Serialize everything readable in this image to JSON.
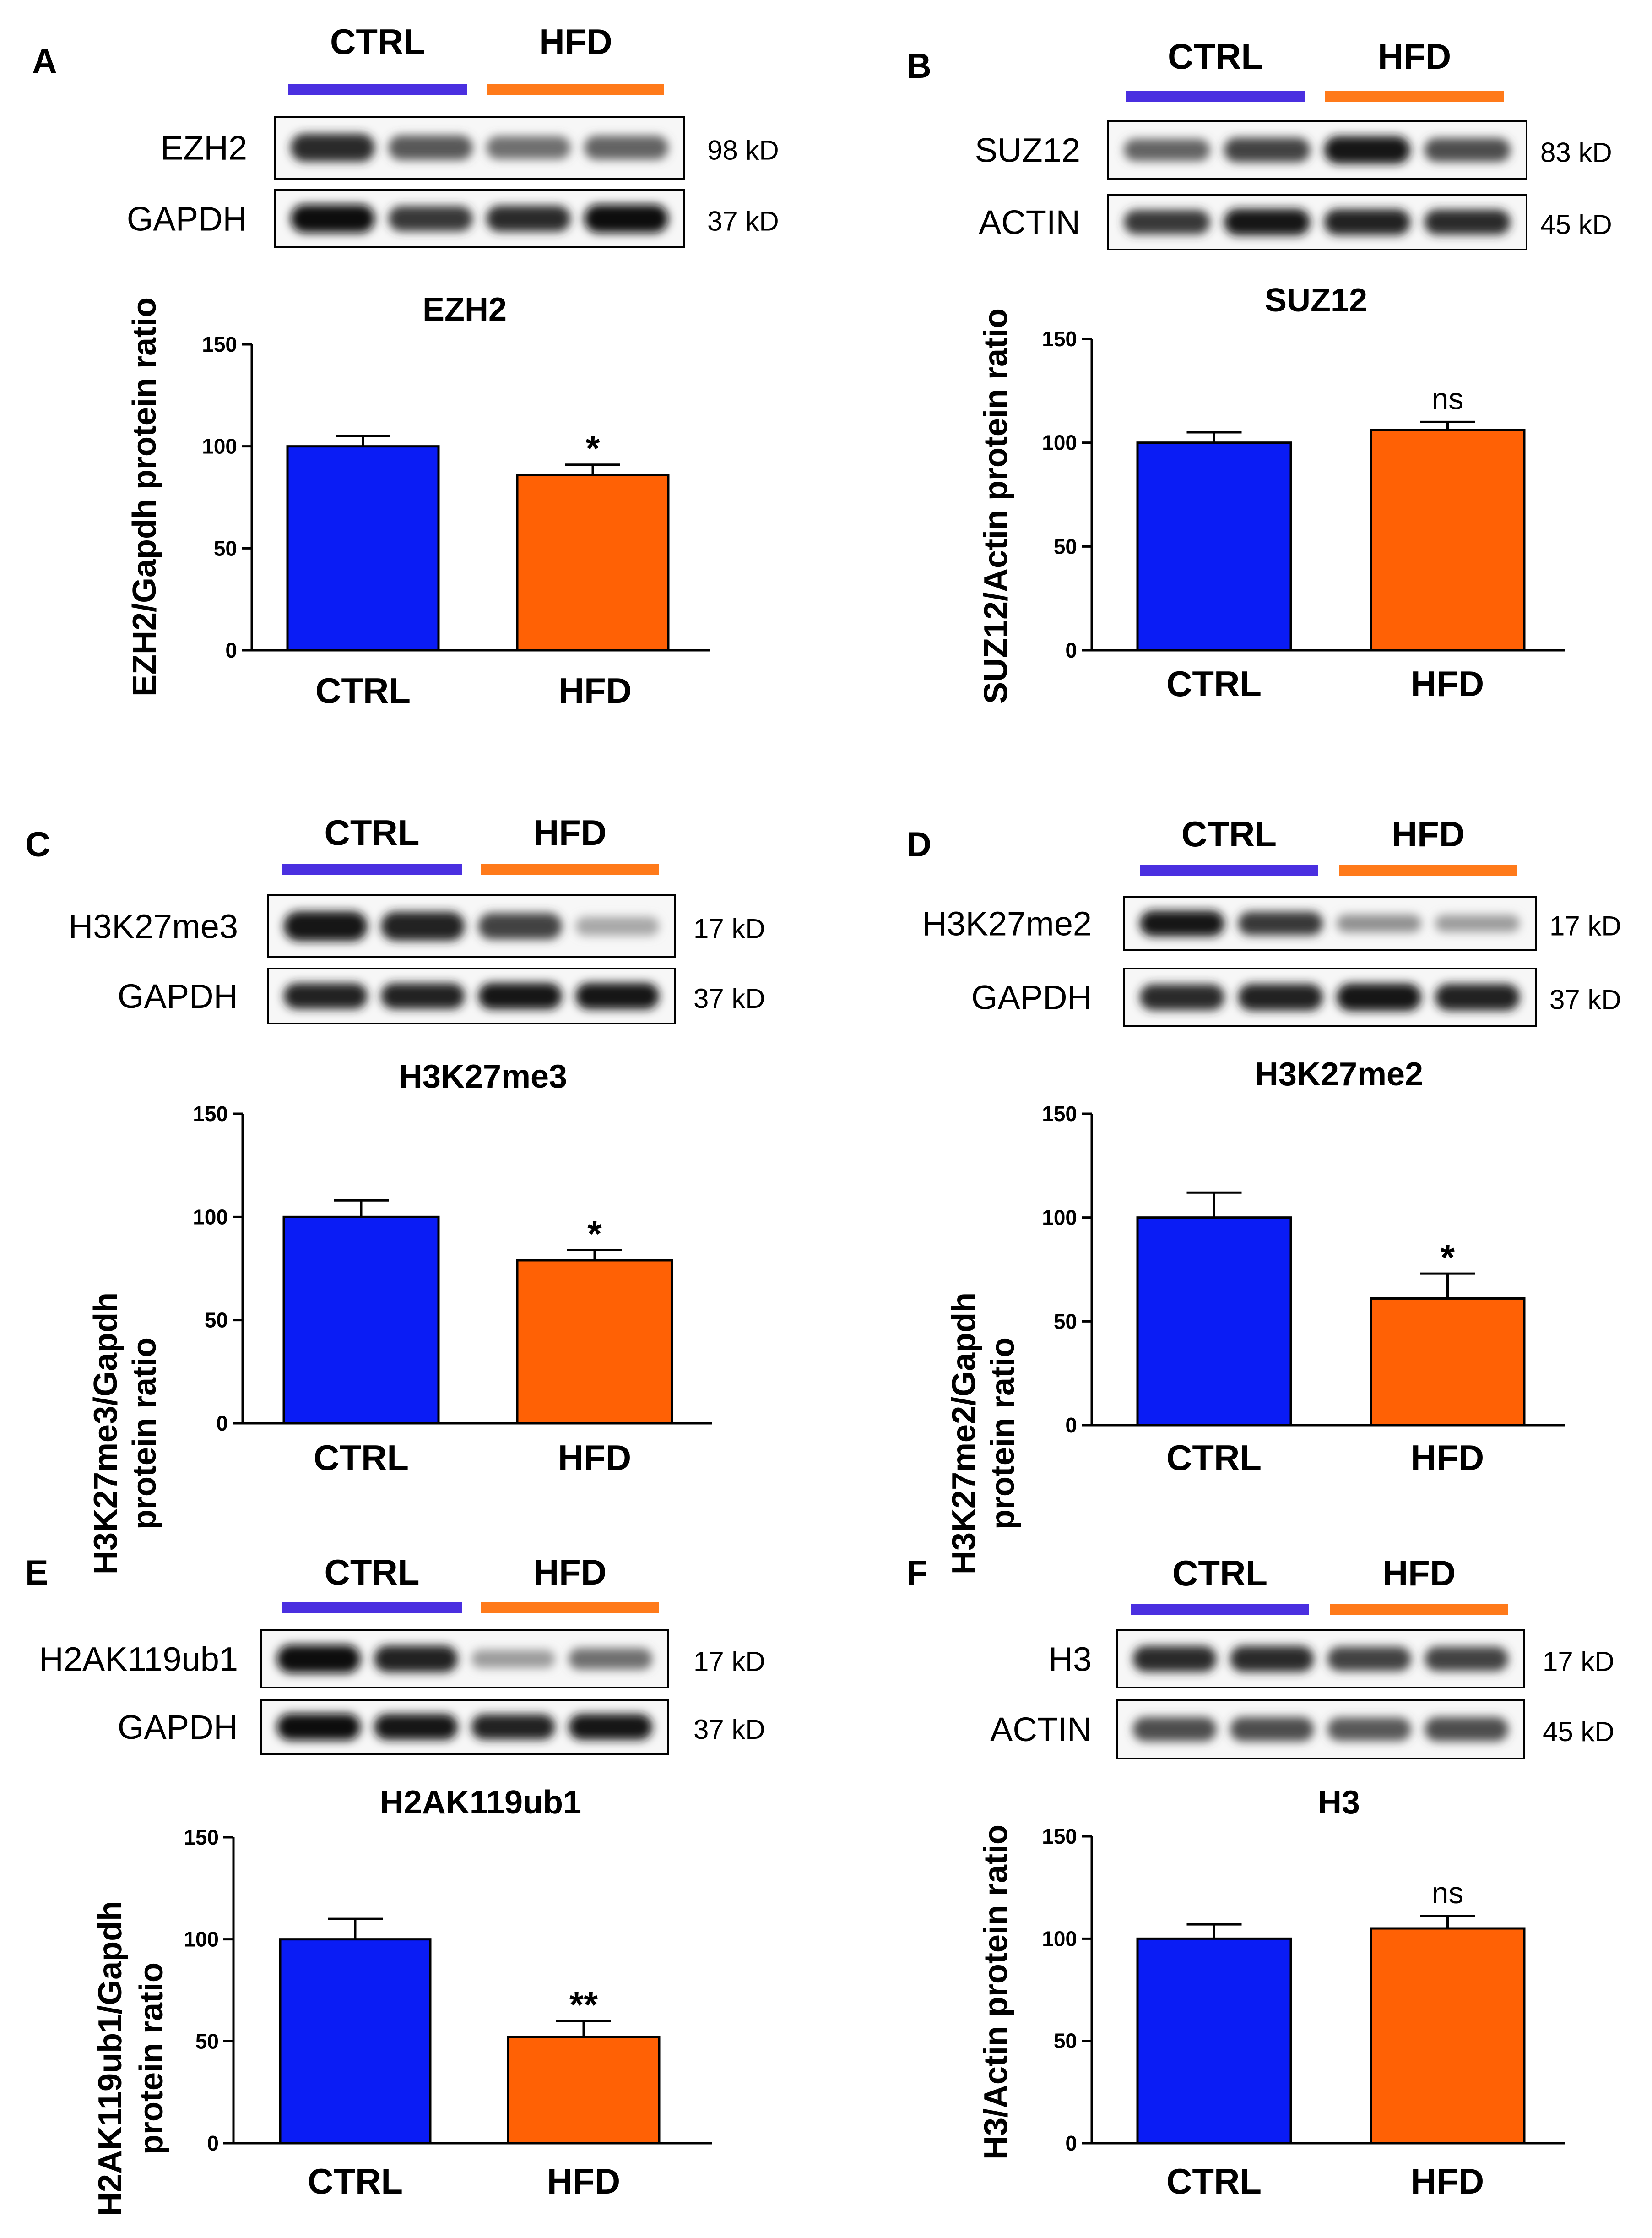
{
  "panels": [
    {
      "letter": "A",
      "title": "EZH2",
      "ylabel": [
        "EZH2/Gapdh protein ratio"
      ],
      "protein": "EZH2",
      "protein_kd": "98 kD",
      "control": "GAPDH",
      "control_kd": "37 kD",
      "sig": "*",
      "protein_bands": [
        0.85,
        0.65,
        0.55,
        0.6
      ],
      "control_bands": [
        1.0,
        0.8,
        0.85,
        1.0
      ]
    },
    {
      "letter": "B",
      "title": "SUZ12",
      "ylabel": [
        "SUZ12/Actin protein ratio"
      ],
      "protein": "SUZ12",
      "protein_kd": "83 kD",
      "control": "ACTIN",
      "control_kd": "45 kD",
      "sig": "ns",
      "protein_bands": [
        0.6,
        0.75,
        0.95,
        0.7
      ],
      "control_bands": [
        0.8,
        0.95,
        0.9,
        0.85
      ]
    },
    {
      "letter": "C",
      "title": "H3K27me3",
      "ylabel": [
        "H3K27me3/Gapdh",
        "protein ratio"
      ],
      "protein": "H3K27me3",
      "protein_kd": "17 kD",
      "control": "GAPDH",
      "control_kd": "37 kD",
      "sig": "*",
      "protein_bands": [
        0.95,
        0.9,
        0.75,
        0.3
      ],
      "control_bands": [
        0.9,
        0.9,
        0.95,
        0.95
      ]
    },
    {
      "letter": "D",
      "title": "H3K27me2",
      "ylabel": [
        "H3K27me2/Gapdh",
        "protein ratio"
      ],
      "protein": "H3K27me2",
      "protein_kd": "17 kD",
      "control": "GAPDH",
      "control_kd": "37 kD",
      "sig": "*",
      "protein_bands": [
        0.95,
        0.8,
        0.4,
        0.35
      ],
      "control_bands": [
        0.85,
        0.9,
        0.95,
        0.9
      ]
    },
    {
      "letter": "E",
      "title": "H2AK119ub1",
      "ylabel": [
        "H2AK119ub1/Gapdh",
        "protein ratio"
      ],
      "protein": "H2AK119ub1",
      "protein_kd": "17 kD",
      "control": "GAPDH",
      "control_kd": "37 kD",
      "sig": "**",
      "protein_bands": [
        1.0,
        0.9,
        0.35,
        0.55
      ],
      "control_bands": [
        1.0,
        0.95,
        0.9,
        0.95
      ]
    },
    {
      "letter": "F",
      "title": "H3",
      "ylabel": [
        "H3/Actin protein ratio"
      ],
      "protein": "H3",
      "protein_kd": "17 kD",
      "control": "ACTIN",
      "control_kd": "45 kD",
      "sig": "ns",
      "protein_bands": [
        0.85,
        0.85,
        0.75,
        0.75
      ],
      "control_bands": [
        0.7,
        0.7,
        0.65,
        0.7
      ]
    }
  ],
  "colors": {
    "ctrl": "#0a1cf5",
    "hfd": "#ff6105",
    "ctrl_line": "#4a2fe0",
    "hfd_line": "#ff7a1a"
  },
  "chart_data": [
    {
      "type": "bar",
      "title": "EZH2",
      "categories": [
        "CTRL",
        "HFD"
      ],
      "values": [
        100,
        86
      ],
      "errors": [
        5,
        5
      ],
      "ylabel": "EZH2/Gapdh protein ratio",
      "ylim": [
        0,
        150
      ],
      "yticks": [
        0,
        50,
        100,
        150
      ],
      "annotations": [
        "",
        "*"
      ]
    },
    {
      "type": "bar",
      "title": "SUZ12",
      "categories": [
        "CTRL",
        "HFD"
      ],
      "values": [
        100,
        106
      ],
      "errors": [
        5,
        4
      ],
      "ylabel": "SUZ12/Actin protein ratio",
      "ylim": [
        0,
        150
      ],
      "yticks": [
        0,
        50,
        100,
        150
      ],
      "annotations": [
        "",
        "ns"
      ]
    },
    {
      "type": "bar",
      "title": "H3K27me3",
      "categories": [
        "CTRL",
        "HFD"
      ],
      "values": [
        100,
        79
      ],
      "errors": [
        8,
        5
      ],
      "ylabel": "H3K27me3/Gapdh protein ratio",
      "ylim": [
        0,
        150
      ],
      "yticks": [
        0,
        50,
        100,
        150
      ],
      "annotations": [
        "",
        "*"
      ]
    },
    {
      "type": "bar",
      "title": "H3K27me2",
      "categories": [
        "CTRL",
        "HFD"
      ],
      "values": [
        100,
        61
      ],
      "errors": [
        12,
        12
      ],
      "ylabel": "H3K27me2/Gapdh protein ratio",
      "ylim": [
        0,
        150
      ],
      "yticks": [
        0,
        50,
        100,
        150
      ],
      "annotations": [
        "",
        "*"
      ]
    },
    {
      "type": "bar",
      "title": "H2AK119ub1",
      "categories": [
        "CTRL",
        "HFD"
      ],
      "values": [
        100,
        52
      ],
      "errors": [
        10,
        8
      ],
      "ylabel": "H2AK119ub1/Gapdh protein ratio",
      "ylim": [
        0,
        150
      ],
      "yticks": [
        0,
        50,
        100,
        150
      ],
      "annotations": [
        "",
        "**"
      ]
    },
    {
      "type": "bar",
      "title": "H3",
      "categories": [
        "CTRL",
        "HFD"
      ],
      "values": [
        100,
        105
      ],
      "errors": [
        7,
        6
      ],
      "ylabel": "H3/Actin protein ratio",
      "ylim": [
        0,
        150
      ],
      "yticks": [
        0,
        50,
        100,
        150
      ],
      "annotations": [
        "",
        "ns"
      ]
    }
  ]
}
